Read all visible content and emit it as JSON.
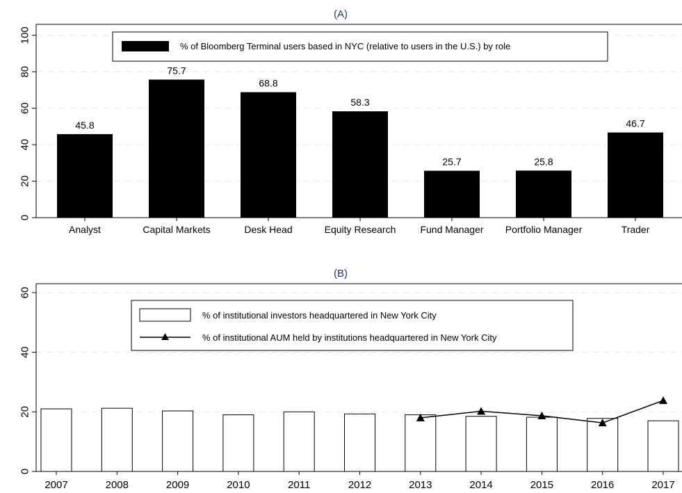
{
  "chart_data": [
    {
      "type": "bar",
      "title": "(A)",
      "categories": [
        "Analyst",
        "Capital Markets",
        "Desk Head",
        "Equity Research",
        "Fund Manager",
        "Portfolio Manager",
        "Trader"
      ],
      "values": [
        45.8,
        75.7,
        68.8,
        58.3,
        25.7,
        25.8,
        46.7
      ],
      "data_labels": [
        "45.8",
        "75.7",
        "68.8",
        "58.3",
        "25.7",
        "25.8",
        "46.7"
      ],
      "series": [
        {
          "name": "% of Bloomberg Terminal users based in NYC (relative to users in the U.S.) by role",
          "values": [
            45.8,
            75.7,
            68.8,
            58.3,
            25.7,
            25.8,
            46.7
          ]
        }
      ],
      "yticks": [
        "0",
        "20",
        "40",
        "60",
        "80",
        "100"
      ],
      "ylim": [
        0,
        106
      ],
      "grid": true,
      "legend_position": "top",
      "bar_color": "#000000"
    },
    {
      "type": "bar",
      "title": "(B)",
      "categories": [
        "2007",
        "2008",
        "2009",
        "2010",
        "2011",
        "2012",
        "2013",
        "2014",
        "2015",
        "2016",
        "2017"
      ],
      "series": [
        {
          "name": "% of institutional investors headquartered in New York City",
          "type": "bar",
          "values": [
            21.0,
            21.2,
            20.3,
            19.0,
            20.0,
            19.3,
            19.0,
            18.5,
            18.2,
            17.8,
            17.0
          ]
        },
        {
          "name": "% of institutional AUM held by institutions headquartered in New York City",
          "type": "line",
          "values": [
            null,
            null,
            null,
            null,
            null,
            null,
            18.0,
            20.2,
            18.7,
            16.3,
            23.8
          ]
        }
      ],
      "yticks": [
        "0",
        "20",
        "40",
        "60"
      ],
      "ylim": [
        0,
        63
      ],
      "grid": true,
      "legend_position": "top",
      "bar_fill": "#ffffff",
      "line_color": "#000000"
    }
  ]
}
